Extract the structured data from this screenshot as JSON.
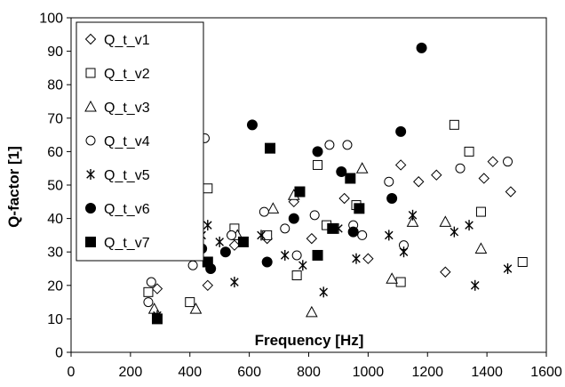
{
  "chart_data": {
    "type": "scatter",
    "xlabel": "Frequency [Hz]",
    "ylabel": "Q-factor [1]",
    "xlim": [
      0,
      1600
    ],
    "ylim": [
      0,
      100
    ],
    "xticks": [
      0,
      200,
      400,
      600,
      800,
      1000,
      1200,
      1400,
      1600
    ],
    "yticks": [
      0,
      10,
      20,
      30,
      40,
      50,
      60,
      70,
      80,
      90,
      100
    ],
    "xtick_labels": [
      "0",
      "200",
      "400",
      "600",
      "800",
      "1000",
      "1200",
      "1400",
      "1600"
    ],
    "ytick_labels": [
      "0",
      "10",
      "20",
      "30",
      "40",
      "50",
      "60",
      "70",
      "80",
      "90",
      "100"
    ],
    "grid": false,
    "legend_position": "top-left",
    "series": [
      {
        "name": "Q_t_v1",
        "marker": "diamond-open",
        "points": [
          [
            290,
            19
          ],
          [
            460,
            20
          ],
          [
            550,
            32
          ],
          [
            660,
            34
          ],
          [
            750,
            45
          ],
          [
            810,
            34
          ],
          [
            920,
            46
          ],
          [
            1000,
            28
          ],
          [
            1110,
            56
          ],
          [
            1170,
            51
          ],
          [
            1230,
            53
          ],
          [
            1260,
            24
          ],
          [
            1390,
            52
          ],
          [
            1420,
            57
          ],
          [
            1480,
            48
          ]
        ]
      },
      {
        "name": "Q_t_v2",
        "marker": "square-open",
        "points": [
          [
            260,
            18
          ],
          [
            400,
            15
          ],
          [
            460,
            49
          ],
          [
            550,
            37
          ],
          [
            660,
            35
          ],
          [
            760,
            23
          ],
          [
            830,
            56
          ],
          [
            860,
            38
          ],
          [
            960,
            44
          ],
          [
            1110,
            21
          ],
          [
            1290,
            68
          ],
          [
            1340,
            60
          ],
          [
            1380,
            42
          ],
          [
            1520,
            27
          ]
        ]
      },
      {
        "name": "Q_t_v3",
        "marker": "triangle-open",
        "points": [
          [
            280,
            13
          ],
          [
            420,
            13
          ],
          [
            560,
            35
          ],
          [
            680,
            43
          ],
          [
            750,
            47
          ],
          [
            810,
            12
          ],
          [
            980,
            55
          ],
          [
            1080,
            22
          ],
          [
            1150,
            39
          ],
          [
            1260,
            39
          ],
          [
            1380,
            31
          ]
        ]
      },
      {
        "name": "Q_t_v4",
        "marker": "circle-open",
        "points": [
          [
            260,
            15
          ],
          [
            270,
            21
          ],
          [
            410,
            26
          ],
          [
            450,
            64
          ],
          [
            540,
            35
          ],
          [
            650,
            42
          ],
          [
            720,
            37
          ],
          [
            760,
            29
          ],
          [
            820,
            41
          ],
          [
            870,
            62
          ],
          [
            930,
            62
          ],
          [
            950,
            38
          ],
          [
            980,
            35
          ],
          [
            1070,
            51
          ],
          [
            1120,
            32
          ],
          [
            1310,
            55
          ],
          [
            1470,
            57
          ]
        ]
      },
      {
        "name": "Q_t_v5",
        "marker": "star",
        "points": [
          [
            290,
            11
          ],
          [
            440,
            35
          ],
          [
            460,
            38
          ],
          [
            500,
            33
          ],
          [
            550,
            21
          ],
          [
            640,
            35
          ],
          [
            720,
            29
          ],
          [
            780,
            26
          ],
          [
            850,
            18
          ],
          [
            900,
            37
          ],
          [
            960,
            28
          ],
          [
            1070,
            35
          ],
          [
            1120,
            30
          ],
          [
            1150,
            41
          ],
          [
            1290,
            36
          ],
          [
            1340,
            38
          ],
          [
            1360,
            20
          ],
          [
            1470,
            25
          ]
        ]
      },
      {
        "name": "Q_t_v6",
        "marker": "circle-filled",
        "points": [
          [
            440,
            31
          ],
          [
            470,
            25
          ],
          [
            520,
            30
          ],
          [
            610,
            68
          ],
          [
            660,
            27
          ],
          [
            750,
            40
          ],
          [
            830,
            60
          ],
          [
            910,
            54
          ],
          [
            950,
            36
          ],
          [
            1080,
            46
          ],
          [
            1110,
            66
          ],
          [
            1180,
            91
          ]
        ]
      },
      {
        "name": "Q_t_v7",
        "marker": "square-filled",
        "points": [
          [
            290,
            10
          ],
          [
            460,
            27
          ],
          [
            580,
            33
          ],
          [
            670,
            61
          ],
          [
            770,
            48
          ],
          [
            830,
            29
          ],
          [
            880,
            37
          ],
          [
            940,
            52
          ],
          [
            970,
            43
          ]
        ]
      }
    ]
  }
}
